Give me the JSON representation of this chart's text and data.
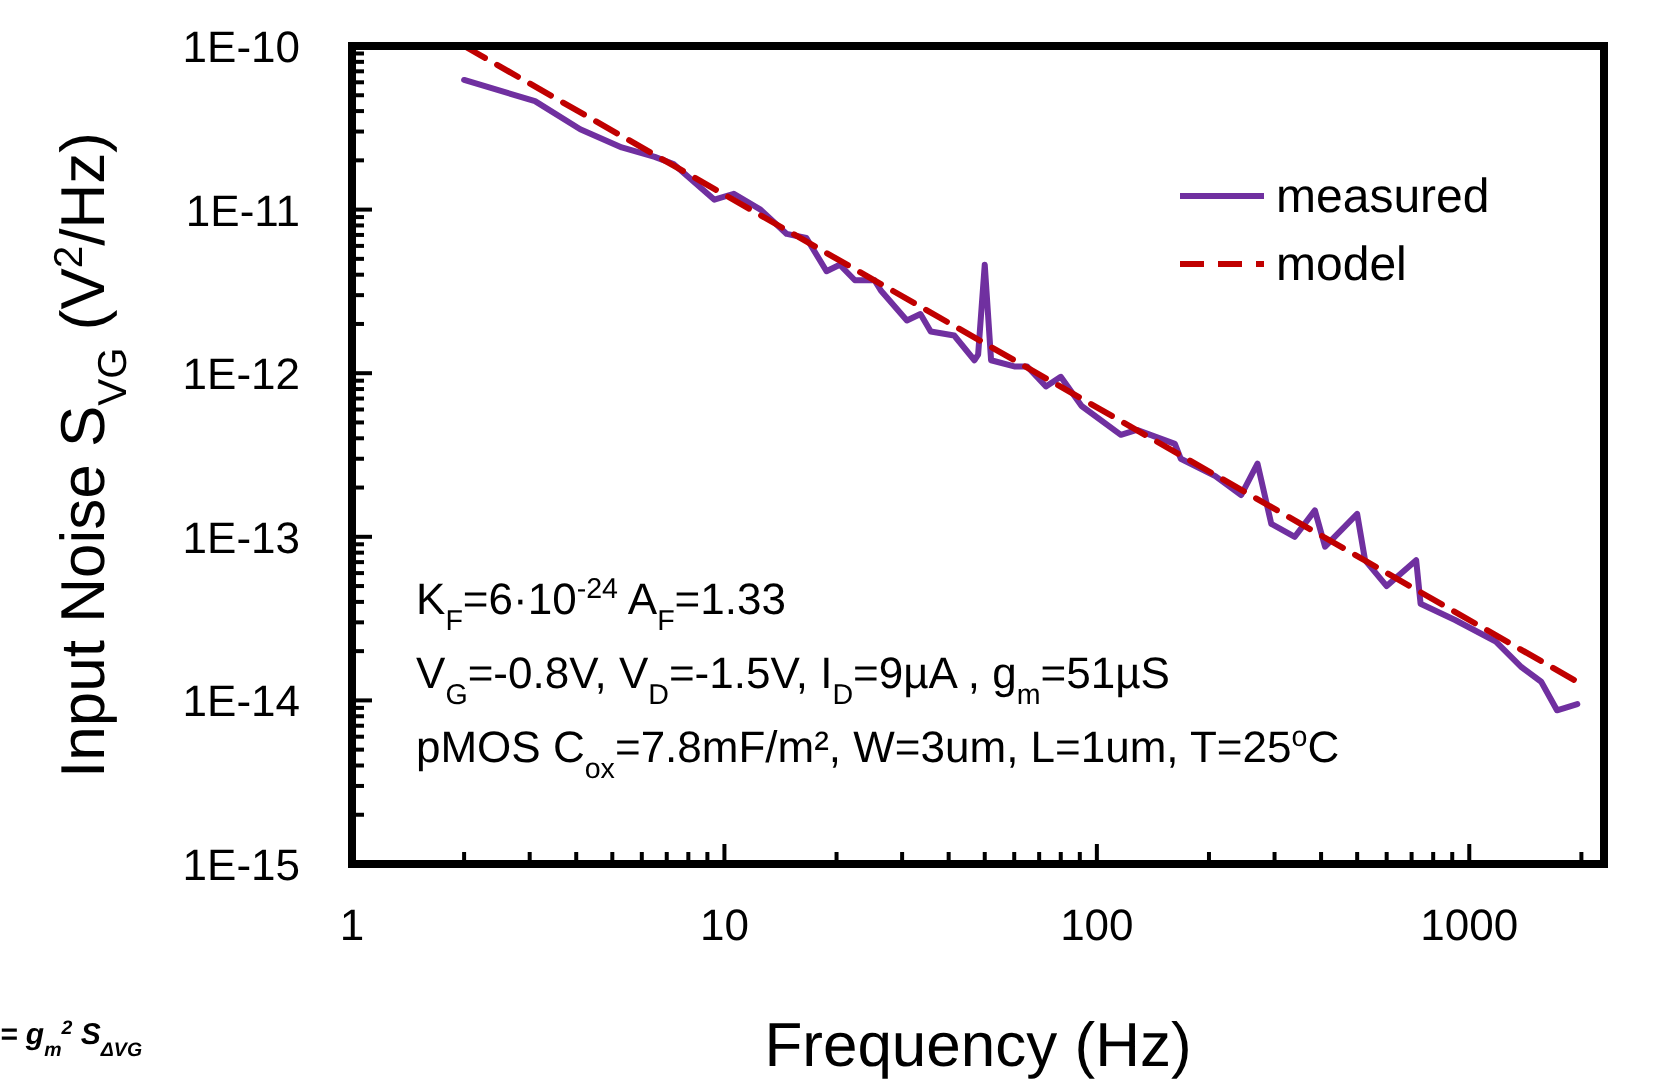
{
  "chart_data": {
    "type": "line",
    "xlabel": "Frequency (Hz)",
    "ylabel": "Input Noise  S$_{VG}$ (V$^{2}$/Hz)",
    "log": "xy",
    "grid": false,
    "legend": "top right",
    "marker": "none",
    "xlim": [
      1,
      2300
    ],
    "ylim": [
      1e-15,
      1e-10
    ],
    "xticks": [
      1,
      {
        "value": 2,
        "label": null
      },
      {
        "value": 3,
        "label": null
      },
      {
        "value": 4,
        "label": null
      },
      {
        "value": 5,
        "label": null
      },
      {
        "value": 6,
        "label": null
      },
      {
        "value": 7,
        "label": null
      },
      {
        "value": 8,
        "label": null
      },
      {
        "value": 9,
        "label": null
      },
      10,
      {
        "value": 20,
        "label": null
      },
      {
        "value": 30,
        "label": null
      },
      {
        "value": 40,
        "label": null
      },
      {
        "value": 50,
        "label": null
      },
      {
        "value": 60,
        "label": null
      },
      {
        "value": 70,
        "label": null
      },
      {
        "value": 80,
        "label": null
      },
      {
        "value": 90,
        "label": null
      },
      100,
      {
        "value": 200,
        "label": null
      },
      {
        "value": 300,
        "label": null
      },
      {
        "value": 400,
        "label": null
      },
      {
        "value": 500,
        "label": null
      },
      {
        "value": 600,
        "label": null
      },
      {
        "value": 700,
        "label": null
      },
      {
        "value": 800,
        "label": null
      },
      {
        "value": 900,
        "label": null
      },
      1000,
      {
        "value": 2000,
        "label": null
      }
    ],
    "yticks": [
      {
        "value": 1e-15,
        "label": "1E-15"
      },
      {
        "value": 2e-15,
        "label": null
      },
      {
        "value": 3e-15,
        "label": null
      },
      {
        "value": 4e-15,
        "label": null
      },
      {
        "value": 5e-15,
        "label": null
      },
      {
        "value": 6e-15,
        "label": null
      },
      {
        "value": 7e-15,
        "label": null
      },
      {
        "value": 8e-15,
        "label": null
      },
      {
        "value": 9e-15,
        "label": null
      },
      {
        "value": 1e-14,
        "label": "1E-14"
      },
      {
        "value": 2e-14,
        "label": null
      },
      {
        "value": 3e-14,
        "label": null
      },
      {
        "value": 4e-14,
        "label": null
      },
      {
        "value": 5e-14,
        "label": null
      },
      {
        "value": 6e-14,
        "label": null
      },
      {
        "value": 7e-14,
        "label": null
      },
      {
        "value": 8e-14,
        "label": null
      },
      {
        "value": 9e-14,
        "label": null
      },
      {
        "value": 1e-13,
        "label": "1E-13"
      },
      {
        "value": 2e-13,
        "label": null
      },
      {
        "value": 3e-13,
        "label": null
      },
      {
        "value": 4e-13,
        "label": null
      },
      {
        "value": 5e-13,
        "label": null
      },
      {
        "value": 6e-13,
        "label": null
      },
      {
        "value": 7e-13,
        "label": null
      },
      {
        "value": 8e-13,
        "label": null
      },
      {
        "value": 9e-13,
        "label": null
      },
      {
        "value": 1e-12,
        "label": "1E-12"
      },
      {
        "value": 2e-12,
        "label": null
      },
      {
        "value": 3e-12,
        "label": null
      },
      {
        "value": 4e-12,
        "label": null
      },
      {
        "value": 5e-12,
        "label": null
      },
      {
        "value": 6e-12,
        "label": null
      },
      {
        "value": 7e-12,
        "label": null
      },
      {
        "value": 8e-12,
        "label": null
      },
      {
        "value": 9e-12,
        "label": null
      },
      {
        "value": 1e-11,
        "label": "1E-11"
      },
      {
        "value": 2e-11,
        "label": null
      },
      {
        "value": 3e-11,
        "label": null
      },
      {
        "value": 4e-11,
        "label": null
      },
      {
        "value": 5e-11,
        "label": null
      },
      {
        "value": 6e-11,
        "label": null
      },
      {
        "value": 7e-11,
        "label": null
      },
      {
        "value": 8e-11,
        "label": null
      },
      {
        "value": 9e-11,
        "label": null
      },
      {
        "value": 1e-10,
        "label": "1E-10"
      }
    ],
    "annotations": [
      "K$_{F}$=6·10$^{-24}$   A$_{F}$=1.33",
      "V$_{G}$=-0.8V, V$_{D}$=-1.5V, I$_{D}$=9µA , g$_{m}$=51µS",
      "pMOS C$_{ox}$=7.8mF/m², W=3um, L=1um, T=25$^{o}$C",
      "= g$_{m}$$^{2}$ S$_{ΔVG}$"
    ],
    "series": [
      {
        "name": "measured",
        "color": "#7030a0",
        "line_style": "solid",
        "x": [
          2.0,
          3.1,
          4.1,
          5.3,
          6.5,
          7.3,
          9.4,
          10.6,
          12.5,
          14.7,
          16.6,
          18.8,
          20.4,
          22.4,
          25.3,
          26.3,
          30.9,
          33.6,
          35.8,
          41.4,
          46.9,
          48,
          50,
          52,
          60,
          65,
          73,
          80,
          91,
          116,
          128,
          162,
          168,
          208,
          244,
          270,
          294,
          340,
          385,
          410,
          500,
          525,
          600,
          720,
          740,
          916,
          1175,
          1380,
          1560,
          1720,
          1950
        ],
        "values": [
          6.2e-11,
          4.6e-11,
          3.1e-11,
          2.4e-11,
          2.1e-11,
          1.9e-11,
          1.15e-11,
          1.25e-11,
          1e-11,
          7.1e-12,
          6.7e-12,
          4.2e-12,
          4.6e-12,
          3.7e-12,
          3.7e-12,
          3.2e-12,
          2.1e-12,
          2.3e-12,
          1.8e-12,
          1.7e-12,
          1.2e-12,
          1.3e-12,
          4.6e-12,
          1.2e-12,
          1.1e-12,
          1.1e-12,
          8.3e-13,
          9.5e-13,
          6.3e-13,
          4.2e-13,
          4.5e-13,
          3.7e-13,
          3e-13,
          2.35e-13,
          1.8e-13,
          2.8e-13,
          1.2e-13,
          1e-13,
          1.45e-13,
          8.7e-14,
          1.38e-13,
          7.2e-14,
          5e-14,
          7.2e-14,
          3.9e-14,
          3.1e-14,
          2.3e-14,
          1.6e-14,
          1.3e-14,
          8.7e-15,
          9.5e-15
        ]
      },
      {
        "name": "model",
        "color": "#c00000",
        "line_style": "dashed",
        "x": [
          2,
          1950
        ],
        "values": [
          1e-10,
          1.3e-14
        ]
      }
    ]
  }
}
